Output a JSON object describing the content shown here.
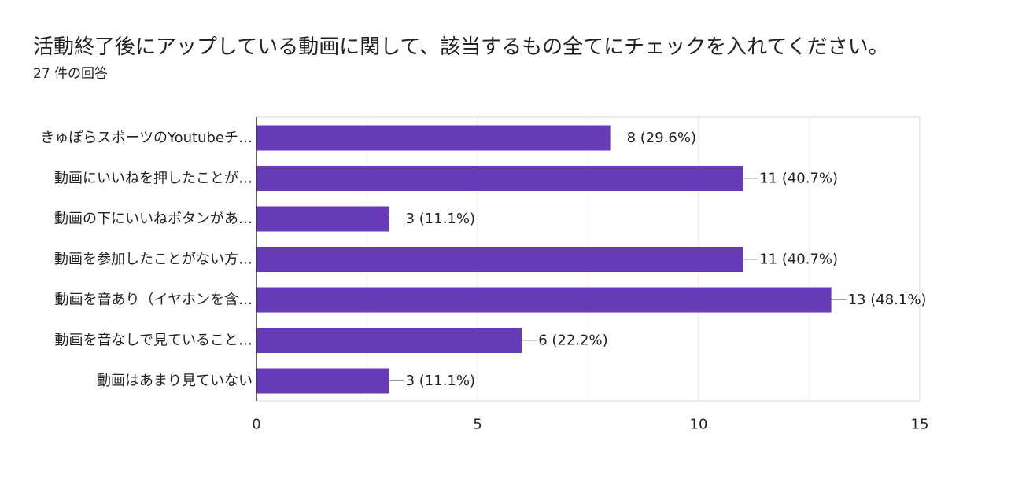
{
  "header": {
    "title": "活動終了後にアップしている動画に関して、該当するもの全てにチェックを入れてください。",
    "response_count": "27 件の回答"
  },
  "chart_data": {
    "type": "bar",
    "orientation": "horizontal",
    "title": "活動終了後にアップしている動画に関して、該当するもの全てにチェックを入れてください。",
    "subtitle": "27 件の回答",
    "categories": [
      "きゅぽらスポーツのYoutubeチ…",
      "動画にいいねを押したことが…",
      "動画の下にいいねボタンがあ…",
      "動画を参加したことがない方…",
      "動画を音あり（イヤホンを含…",
      "動画を音なしで見ていること…",
      "動画はあまり見ていない"
    ],
    "values": [
      8,
      11,
      3,
      11,
      13,
      6,
      3
    ],
    "data_labels": [
      "8 (29.6%)",
      "11 (40.7%)",
      "3 (11.1%)",
      "11 (40.7%)",
      "13 (48.1%)",
      "6 (22.2%)",
      "3 (11.1%)"
    ],
    "xlim": [
      0,
      15
    ],
    "xticks": [
      0,
      5,
      10,
      15
    ],
    "xtick_labels": [
      "0",
      "5",
      "10",
      "15"
    ],
    "grid": true,
    "bar_color": "#673AB7"
  }
}
